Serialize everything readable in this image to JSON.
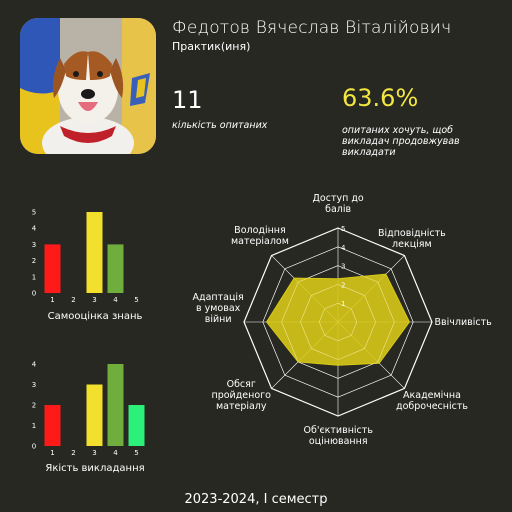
{
  "profile": {
    "name": "Федотов Вячеслав Віталійович",
    "role": "Практик(иня)",
    "avatar_icon": "dog-portrait-icon"
  },
  "stats": {
    "count_value": "11",
    "count_caption": "кількість опитаних",
    "percent_value": "63.6%",
    "percent_caption": "опитаних хочуть, щоб викладач продовжував викладати"
  },
  "footer": "2023-2024, І семестр",
  "colors": {
    "background": "#272822",
    "accent_yellow": "#f2e641",
    "bar_red": "#ff1a1a",
    "bar_orange": "#ff8c00",
    "bar_yellow": "#f2e02c",
    "bar_lightgreen": "#6fad3c",
    "bar_green": "#2bf07a",
    "radar_fill": "#d8c817"
  },
  "chart_data": [
    {
      "type": "bar",
      "xlabel": "Самооцінка знань",
      "categories": [
        "1",
        "2",
        "3",
        "4",
        "5"
      ],
      "values": [
        3,
        0,
        5,
        3,
        0
      ],
      "ylim": [
        0,
        5
      ],
      "yticks": [
        "0",
        "1",
        "2",
        "3",
        "4",
        "5"
      ]
    },
    {
      "type": "bar",
      "xlabel": "Якість викладання",
      "categories": [
        "1",
        "2",
        "3",
        "4",
        "5"
      ],
      "values": [
        2,
        0,
        3,
        4,
        2
      ],
      "ylim": [
        0,
        4
      ],
      "yticks": [
        "0",
        "1",
        "2",
        "3",
        "4"
      ]
    },
    {
      "type": "radar",
      "axes": [
        "Доступ до балів",
        "Відповідність лекціям",
        "Ввічливість",
        "Академічна доброчесність",
        "Об'єктивність оцінювання",
        "Обсяг пройденого матеріалу",
        "Адаптація в умовах війни",
        "Володіння матеріалом"
      ],
      "values": [
        2.3,
        3.6,
        3.8,
        3.1,
        2.3,
        3.0,
        3.8,
        3.3
      ],
      "rlim": [
        0,
        5
      ],
      "rticks": [
        "1",
        "2",
        "3",
        "4",
        "5"
      ]
    }
  ]
}
